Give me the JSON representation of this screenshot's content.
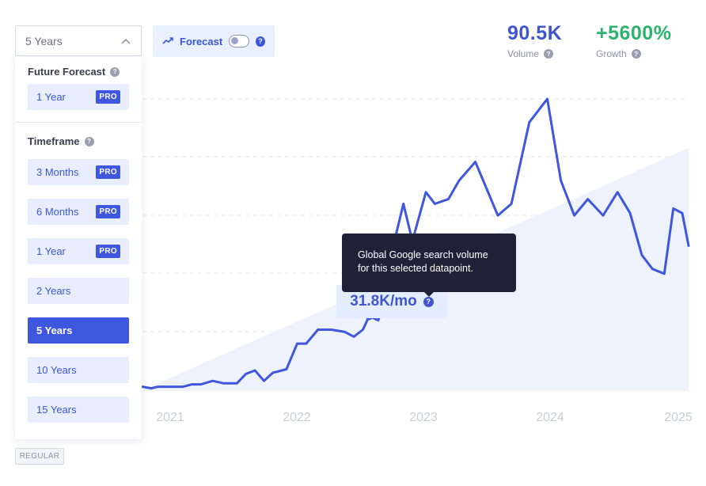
{
  "timeframe_select": {
    "value": "5 Years"
  },
  "forecast_toggle": {
    "label": "Forecast",
    "enabled": false
  },
  "stats": {
    "volume": {
      "value": "90.5K",
      "label": "Volume"
    },
    "growth": {
      "value": "+5600%",
      "label": "Growth"
    }
  },
  "dropdown": {
    "future_forecast": {
      "title": "Future Forecast",
      "options": [
        {
          "label": "1 Year",
          "badge": "PRO"
        }
      ]
    },
    "timeframe": {
      "title": "Timeframe",
      "options": [
        {
          "label": "3 Months",
          "badge": "PRO"
        },
        {
          "label": "6 Months",
          "badge": "PRO"
        },
        {
          "label": "1 Year",
          "badge": "PRO"
        },
        {
          "label": "2 Years",
          "badge": ""
        },
        {
          "label": "5 Years",
          "badge": "",
          "selected": true
        },
        {
          "label": "10 Years",
          "badge": ""
        },
        {
          "label": "15 Years",
          "badge": ""
        }
      ]
    }
  },
  "regular_badge": "REGULAR",
  "selected_point": {
    "value": "31.8K/mo"
  },
  "tooltip": {
    "text_line1": "Global Google search volume",
    "text_line2": "for this selected datapoint."
  },
  "colors": {
    "line": "#3f56de",
    "growth": "#2cb36f",
    "trend_fill": "#e9eefc"
  },
  "chart_data": {
    "type": "line",
    "x_ticks": [
      "2021",
      "2022",
      "2023",
      "2024",
      "2025"
    ],
    "grid": true,
    "series": [
      {
        "values": [
          [
            2020.0,
            1.5
          ],
          [
            2020.1,
            0.8
          ],
          [
            2020.17,
            1.5
          ],
          [
            2020.3,
            1.5
          ],
          [
            2020.45,
            1.5
          ],
          [
            2020.55,
            2.5
          ],
          [
            2020.65,
            2.5
          ],
          [
            2020.78,
            4.0
          ],
          [
            2020.9,
            3.0
          ],
          [
            2021.05,
            3.0
          ],
          [
            2021.15,
            7.0
          ],
          [
            2021.25,
            8.5
          ],
          [
            2021.35,
            4.0
          ],
          [
            2021.45,
            7.5
          ],
          [
            2021.6,
            9.0
          ],
          [
            2021.72,
            20.0
          ],
          [
            2021.82,
            20.0
          ],
          [
            2021.95,
            26.0
          ],
          [
            2022.1,
            26.0
          ],
          [
            2022.25,
            25.0
          ],
          [
            2022.35,
            23.0
          ],
          [
            2022.45,
            26.0
          ],
          [
            2022.52,
            31.8
          ],
          [
            2022.62,
            30.0
          ],
          [
            2022.7,
            38.0
          ],
          [
            2022.8,
            64.0
          ],
          [
            2022.9,
            80.0
          ],
          [
            2023.0,
            64.0
          ],
          [
            2023.15,
            85.0
          ],
          [
            2023.25,
            80.0
          ],
          [
            2023.4,
            82.0
          ],
          [
            2023.52,
            90.0
          ],
          [
            2023.7,
            98.0
          ],
          [
            2023.95,
            75.0
          ],
          [
            2024.1,
            80.0
          ],
          [
            2024.3,
            115.0
          ],
          [
            2024.5,
            125.0
          ],
          [
            2024.65,
            90.0
          ],
          [
            2024.8,
            75.0
          ],
          [
            2024.95,
            82.0
          ],
          [
            2025.12,
            75.0
          ],
          [
            2025.28,
            85.0
          ],
          [
            2025.42,
            76.0
          ],
          [
            2025.55,
            58.0
          ],
          [
            2025.67,
            52.0
          ],
          [
            2025.8,
            50.0
          ],
          [
            2025.9,
            78.0
          ],
          [
            2026.0,
            76.0
          ],
          [
            2026.07,
            62.0
          ]
        ]
      }
    ],
    "trend": true,
    "selected_x": 2022.52
  }
}
